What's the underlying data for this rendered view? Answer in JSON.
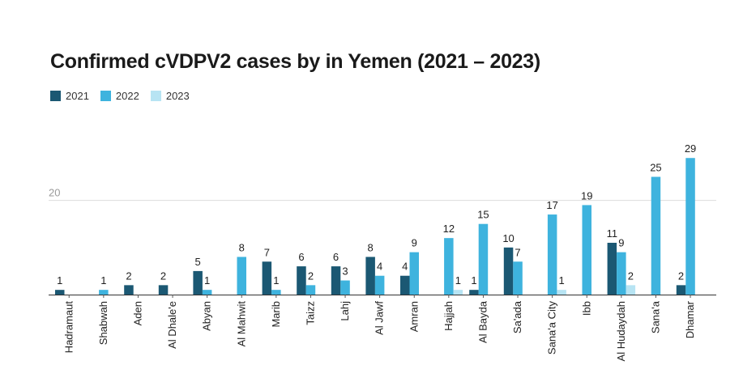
{
  "chart_data": {
    "type": "bar",
    "title": "Confirmed cVDPV2 cases by in Yemen (2021 – 2023)",
    "xlabel": "",
    "ylabel": "",
    "ylim": [
      0,
      30
    ],
    "yticks": [
      20
    ],
    "grid": true,
    "legend_position": "top-left",
    "categories": [
      "Hadramaut",
      "Shabwah",
      "Aden",
      "Al Dhale'e",
      "Abyan",
      "Al Mahwit",
      "Marib",
      "Taizz",
      "Lahj",
      "Al Jawf",
      "Amran",
      "Hajjah",
      "Al Bayda",
      "Sa'ada",
      "Sana'a City",
      "Ibb",
      "Al Hudaydah",
      "Sana'a",
      "Dhamar"
    ],
    "series": [
      {
        "name": "2021",
        "color": "#1b5873",
        "values": [
          1,
          null,
          2,
          2,
          5,
          null,
          7,
          6,
          6,
          8,
          4,
          null,
          1,
          10,
          null,
          null,
          11,
          null,
          2
        ]
      },
      {
        "name": "2022",
        "color": "#3eb3de",
        "values": [
          null,
          1,
          null,
          null,
          1,
          8,
          1,
          2,
          3,
          4,
          9,
          12,
          15,
          7,
          17,
          19,
          9,
          25,
          29
        ]
      },
      {
        "name": "2023",
        "color": "#b7e4f3",
        "values": [
          null,
          null,
          null,
          null,
          null,
          null,
          null,
          null,
          null,
          null,
          null,
          1,
          null,
          null,
          1,
          null,
          2,
          null,
          null
        ]
      }
    ]
  }
}
